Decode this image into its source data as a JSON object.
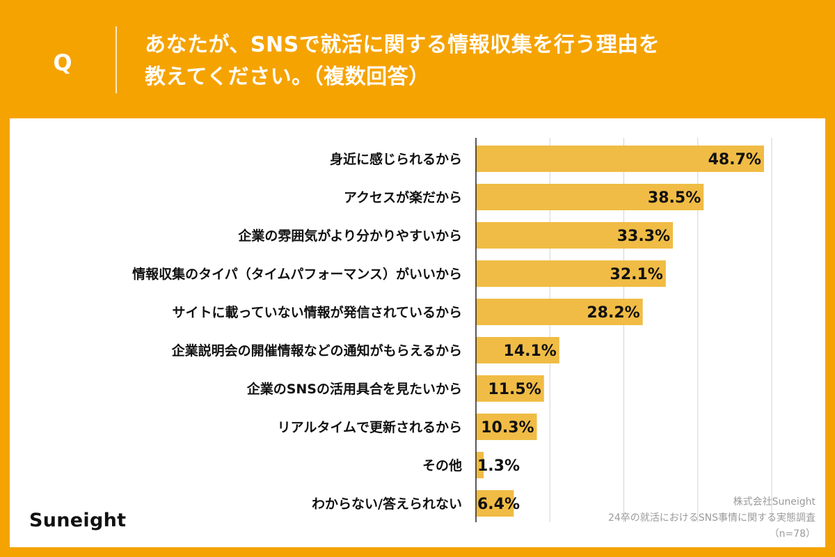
{
  "header": {
    "q_label": "Q",
    "title_lines": [
      "あなたが、SNSで就活に関する情報収集を行う理由を",
      "教えてください。（複数回答）"
    ]
  },
  "chart_data": {
    "type": "bar",
    "orientation": "horizontal",
    "categories": [
      "身近に感じられるから",
      "アクセスが楽だから",
      "企業の雰囲気がより分かりやすいから",
      "情報収集のタイパ（タイムパフォーマンス）がいいから",
      "サイトに載っていない情報が発信されているから",
      "企業説明会の開催情報などの通知がもらえるから",
      "企業のSNSの活用具合を見たいから",
      "リアルタイムで更新されるから",
      "その他",
      "わからない/答えられない"
    ],
    "values": [
      48.7,
      38.5,
      33.3,
      32.1,
      28.2,
      14.1,
      11.5,
      10.3,
      1.3,
      6.4
    ],
    "value_labels": [
      "48.7%",
      "38.5%",
      "33.3%",
      "32.1%",
      "28.2%",
      "14.1%",
      "11.5%",
      "10.3%",
      "1.3%",
      "6.4%"
    ],
    "xlim": [
      0,
      50
    ],
    "grid": true,
    "bar_color": "#F0BC45"
  },
  "logo_text": "Suneight",
  "source_lines": [
    "株式会社Suneight",
    "24卒の就活におけるSNS事情に関する実態調査",
    "（n=78）"
  ]
}
